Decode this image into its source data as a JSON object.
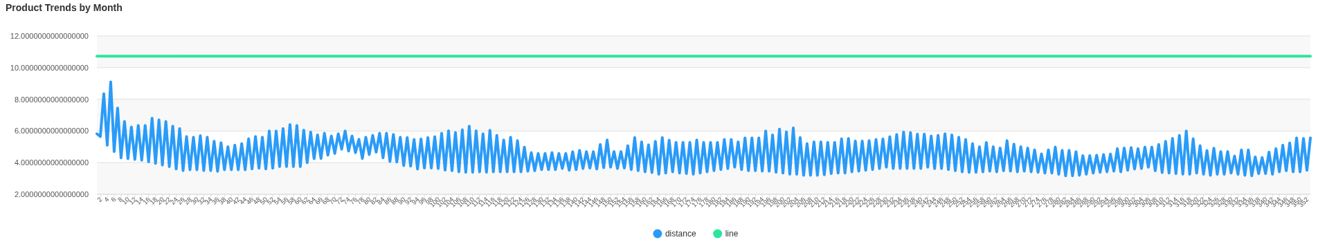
{
  "chart_data": {
    "type": "line",
    "title": "Product Trends by Month",
    "categories": [
      null,
      "2",
      null,
      "4",
      null,
      "6",
      null,
      "8",
      null,
      "10",
      null,
      "12",
      null,
      "14",
      null,
      "16",
      null,
      "18",
      null,
      "20",
      null,
      "22",
      null,
      "24",
      null,
      "26",
      null,
      "28",
      null,
      "30",
      null,
      "32",
      null,
      "34",
      null,
      "36",
      null,
      "38",
      null,
      "40",
      null,
      "42",
      null,
      "44",
      null,
      "46",
      null,
      "48",
      null,
      "50",
      null,
      "52",
      null,
      "54",
      null,
      "56",
      null,
      "58",
      null,
      "60",
      null,
      "62",
      null,
      "64",
      null,
      "66",
      null,
      "68",
      null,
      "70",
      null,
      "72",
      null,
      "74",
      null,
      "76",
      null,
      "78",
      null,
      "80",
      null,
      "82",
      null,
      "84",
      null,
      "86",
      null,
      "88",
      null,
      "90",
      null,
      "92",
      null,
      "94",
      null,
      "96",
      null,
      "98",
      null,
      "100",
      null,
      "102",
      null,
      "104",
      null,
      "106",
      null,
      "108",
      null,
      "110",
      null,
      "112",
      null,
      "114",
      null,
      "116",
      null,
      "118",
      null,
      "120",
      null,
      "122",
      null,
      "124",
      null,
      "126",
      null,
      "128",
      null,
      "130",
      null,
      "132",
      null,
      "134",
      null,
      "136",
      null,
      "138",
      null,
      "140",
      null,
      "142",
      null,
      "144",
      null,
      "146",
      null,
      "148",
      null,
      "150",
      null,
      "152",
      null,
      "154",
      null,
      "156",
      null,
      "158",
      null,
      "160",
      null,
      "162",
      null,
      "164",
      null,
      "166",
      null,
      "168",
      null,
      "170",
      null,
      "172",
      null,
      "174",
      null,
      "176",
      null,
      "178",
      null,
      "180",
      null,
      "182",
      null,
      "184",
      null,
      "186",
      null,
      "188",
      null,
      "190",
      null,
      "192",
      null,
      "194",
      null,
      "196",
      null,
      "198",
      null,
      "200",
      null,
      "202",
      null,
      "204",
      null,
      "206",
      null,
      "208",
      null,
      "210",
      null,
      "212",
      null,
      "214",
      null,
      "216",
      null,
      "218",
      null,
      "220",
      null,
      "222",
      null,
      "224",
      null,
      "226",
      null,
      "228",
      null,
      "230",
      null,
      "232",
      null,
      "234",
      null,
      "236",
      null,
      "238",
      null,
      "240",
      null,
      "242",
      null,
      "244",
      null,
      "246",
      null,
      "248",
      null,
      "250",
      null,
      "252",
      null,
      "254",
      null,
      "256",
      null,
      "258",
      null,
      "260",
      null,
      "262",
      null,
      "264",
      null,
      "266",
      null,
      "268",
      null,
      "270",
      null,
      "272",
      null,
      "274",
      null,
      "276",
      null,
      "278",
      null,
      "280",
      null,
      "282",
      null,
      "284",
      null,
      "286",
      null,
      "288",
      null,
      "290",
      null,
      "292",
      null,
      "294",
      null,
      "296",
      null,
      "298",
      null,
      "300",
      null,
      "302",
      null,
      "304",
      null,
      "306",
      null,
      "308",
      null,
      "310",
      null,
      "312",
      null,
      "314",
      null,
      "316",
      null,
      "318",
      null,
      "320",
      null,
      "322",
      null,
      "324",
      null,
      "326",
      null,
      "328",
      null,
      "330",
      null,
      "332",
      null,
      "334",
      null,
      "336",
      null,
      "338",
      null,
      "340",
      null,
      "342",
      null,
      "344",
      null,
      "346",
      null,
      "348",
      null,
      "350",
      null,
      "352",
      null
    ],
    "series": [
      {
        "name": "distance",
        "color": "#2a9bf8",
        "values": [
          5.82,
          5.65,
          8.35,
          5.1,
          9.1,
          4.7,
          7.45,
          4.3,
          6.6,
          4.25,
          6.25,
          4.2,
          6.35,
          4.15,
          6.35,
          4.05,
          6.8,
          3.95,
          6.7,
          3.85,
          6.6,
          3.75,
          6.3,
          3.6,
          6.15,
          3.5,
          5.65,
          3.55,
          5.6,
          3.55,
          5.7,
          3.5,
          5.6,
          3.5,
          5.35,
          3.45,
          5.25,
          3.55,
          5.0,
          3.55,
          5.1,
          3.55,
          5.2,
          3.55,
          5.5,
          3.6,
          5.65,
          3.65,
          5.6,
          3.6,
          6.0,
          3.65,
          6.0,
          3.75,
          6.15,
          3.75,
          6.4,
          3.75,
          6.35,
          3.75,
          6.05,
          4.0,
          5.93,
          4.25,
          5.75,
          4.26,
          5.85,
          4.47,
          5.68,
          4.58,
          5.82,
          4.85,
          6.0,
          4.73,
          5.68,
          4.63,
          5.47,
          4.26,
          5.6,
          4.51,
          5.72,
          4.66,
          5.85,
          4.3,
          5.85,
          4.07,
          5.78,
          4.04,
          5.6,
          3.81,
          5.58,
          3.78,
          5.46,
          3.59,
          5.49,
          3.66,
          5.58,
          3.66,
          5.64,
          3.63,
          5.85,
          3.53,
          6.01,
          3.49,
          5.9,
          3.42,
          6.07,
          3.39,
          6.3,
          3.39,
          6.01,
          3.42,
          5.82,
          3.39,
          6.04,
          3.42,
          5.72,
          3.42,
          5.43,
          3.42,
          5.6,
          3.42,
          5.39,
          3.42,
          4.98,
          3.46,
          4.63,
          3.49,
          4.58,
          3.56,
          4.58,
          3.56,
          4.63,
          3.56,
          4.58,
          3.63,
          4.58,
          3.52,
          4.69,
          3.56,
          4.77,
          3.63,
          4.69,
          3.66,
          4.69,
          3.6,
          5.14,
          3.68,
          5.43,
          3.71,
          4.7,
          3.63,
          4.7,
          3.66,
          5.07,
          3.56,
          5.58,
          3.49,
          5.31,
          3.42,
          5.12,
          3.37,
          5.34,
          3.27,
          5.58,
          3.34,
          5.42,
          3.42,
          5.28,
          3.34,
          5.28,
          3.31,
          5.28,
          3.27,
          5.43,
          3.34,
          5.28,
          3.42,
          5.28,
          3.49,
          5.28,
          3.56,
          5.46,
          3.63,
          5.46,
          3.71,
          5.31,
          3.56,
          5.56,
          3.49,
          5.56,
          3.49,
          5.56,
          3.46,
          6.0,
          3.46,
          5.75,
          3.39,
          6.12,
          3.34,
          5.94,
          3.27,
          6.19,
          3.27,
          5.58,
          3.2,
          5.2,
          3.2,
          5.31,
          3.2,
          5.31,
          3.23,
          5.28,
          3.31,
          5.28,
          3.34,
          5.5,
          3.34,
          5.53,
          3.42,
          5.36,
          3.46,
          5.36,
          3.52,
          5.39,
          3.56,
          5.46,
          3.63,
          5.49,
          3.71,
          5.64,
          3.63,
          5.78,
          3.63,
          5.93,
          3.63,
          5.9,
          3.63,
          5.8,
          3.63,
          5.8,
          3.71,
          5.68,
          3.63,
          5.72,
          3.63,
          5.82,
          3.56,
          5.75,
          3.49,
          5.6,
          3.42,
          5.46,
          3.39,
          5.2,
          3.39,
          5.0,
          3.42,
          5.27,
          3.46,
          5.0,
          3.42,
          4.92,
          3.49,
          5.39,
          3.46,
          5.17,
          3.42,
          5.0,
          3.46,
          4.92,
          3.42,
          4.8,
          3.39,
          4.55,
          3.34,
          4.8,
          3.34,
          4.98,
          3.27,
          4.77,
          3.17,
          4.77,
          3.17,
          4.69,
          3.2,
          4.44,
          3.27,
          4.44,
          3.34,
          4.47,
          3.39,
          4.51,
          3.42,
          4.54,
          3.46,
          4.88,
          3.42,
          4.92,
          3.52,
          4.95,
          3.6,
          4.88,
          3.63,
          4.98,
          3.71,
          4.98,
          3.49,
          5.14,
          3.37,
          5.34,
          3.34,
          5.53,
          3.31,
          5.72,
          3.27,
          6.0,
          3.27,
          5.5,
          3.34,
          5.07,
          3.27,
          4.76,
          3.2,
          4.91,
          3.27,
          4.7,
          3.27,
          4.7,
          3.34,
          4.41,
          3.27,
          4.8,
          3.2,
          4.8,
          3.17,
          4.36,
          3.31,
          4.32,
          3.31,
          4.66,
          3.27,
          4.88,
          3.42,
          5.1,
          3.49,
          5.24,
          3.42,
          5.56,
          3.42,
          5.53,
          3.52,
          5.56
        ]
      },
      {
        "name": "line",
        "color": "#2ee59d",
        "values": [
          10.72,
          10.72,
          10.72,
          10.72,
          10.72,
          10.72,
          10.72,
          10.72,
          10.72,
          10.72,
          10.72,
          10.72,
          10.72,
          10.72,
          10.72,
          10.72,
          10.72,
          10.72,
          10.72,
          10.72,
          10.72,
          10.72,
          10.72,
          10.72,
          10.72,
          10.72,
          10.72,
          10.72,
          10.72,
          10.72,
          10.72,
          10.72,
          10.72,
          10.72,
          10.72,
          10.72,
          10.72,
          10.72,
          10.72,
          10.72,
          10.72,
          10.72,
          10.72,
          10.72,
          10.72,
          10.72,
          10.72,
          10.72,
          10.72,
          10.72,
          10.72,
          10.72,
          10.72,
          10.72,
          10.72,
          10.72,
          10.72,
          10.72,
          10.72,
          10.72,
          10.72,
          10.72,
          10.72,
          10.72,
          10.72,
          10.72,
          10.72,
          10.72,
          10.72,
          10.72,
          10.72,
          10.72,
          10.72,
          10.72,
          10.72,
          10.72,
          10.72,
          10.72,
          10.72,
          10.72,
          10.72,
          10.72,
          10.72,
          10.72,
          10.72,
          10.72,
          10.72,
          10.72,
          10.72,
          10.72,
          10.72,
          10.72,
          10.72,
          10.72,
          10.72,
          10.72,
          10.72,
          10.72,
          10.72,
          10.72,
          10.72,
          10.72,
          10.72,
          10.72,
          10.72,
          10.72,
          10.72,
          10.72,
          10.72,
          10.72,
          10.72,
          10.72,
          10.72,
          10.72,
          10.72,
          10.72,
          10.72,
          10.72,
          10.72,
          10.72,
          10.72,
          10.72,
          10.72,
          10.72,
          10.72,
          10.72,
          10.72,
          10.72,
          10.72,
          10.72,
          10.72,
          10.72,
          10.72,
          10.72,
          10.72,
          10.72,
          10.72,
          10.72,
          10.72,
          10.72,
          10.72,
          10.72,
          10.72,
          10.72,
          10.72,
          10.72,
          10.72,
          10.72,
          10.72,
          10.72,
          10.72,
          10.72,
          10.72,
          10.72,
          10.72,
          10.72,
          10.72,
          10.72,
          10.72,
          10.72,
          10.72,
          10.72,
          10.72,
          10.72,
          10.72,
          10.72,
          10.72,
          10.72,
          10.72,
          10.72,
          10.72,
          10.72,
          10.72,
          10.72,
          10.72,
          10.72,
          10.72,
          10.72,
          10.72,
          10.72,
          10.72,
          10.72,
          10.72,
          10.72,
          10.72,
          10.72,
          10.72,
          10.72,
          10.72,
          10.72,
          10.72,
          10.72,
          10.72,
          10.72,
          10.72,
          10.72,
          10.72,
          10.72,
          10.72,
          10.72,
          10.72,
          10.72,
          10.72,
          10.72,
          10.72,
          10.72,
          10.72,
          10.72,
          10.72,
          10.72,
          10.72,
          10.72,
          10.72,
          10.72,
          10.72,
          10.72,
          10.72,
          10.72,
          10.72,
          10.72,
          10.72,
          10.72,
          10.72,
          10.72,
          10.72,
          10.72,
          10.72,
          10.72,
          10.72,
          10.72,
          10.72,
          10.72,
          10.72,
          10.72,
          10.72,
          10.72,
          10.72,
          10.72,
          10.72,
          10.72,
          10.72,
          10.72,
          10.72,
          10.72,
          10.72,
          10.72,
          10.72,
          10.72,
          10.72,
          10.72,
          10.72,
          10.72,
          10.72,
          10.72,
          10.72,
          10.72,
          10.72,
          10.72,
          10.72,
          10.72,
          10.72,
          10.72,
          10.72,
          10.72,
          10.72,
          10.72,
          10.72,
          10.72,
          10.72,
          10.72,
          10.72,
          10.72,
          10.72,
          10.72,
          10.72,
          10.72,
          10.72,
          10.72,
          10.72,
          10.72,
          10.72,
          10.72,
          10.72,
          10.72,
          10.72,
          10.72,
          10.72,
          10.72,
          10.72,
          10.72,
          10.72,
          10.72,
          10.72,
          10.72,
          10.72,
          10.72,
          10.72,
          10.72,
          10.72,
          10.72,
          10.72,
          10.72,
          10.72,
          10.72,
          10.72,
          10.72,
          10.72,
          10.72,
          10.72,
          10.72,
          10.72,
          10.72,
          10.72,
          10.72,
          10.72,
          10.72,
          10.72,
          10.72,
          10.72,
          10.72,
          10.72,
          10.72,
          10.72,
          10.72,
          10.72,
          10.72,
          10.72,
          10.72,
          10.72,
          10.72,
          10.72,
          10.72,
          10.72,
          10.72,
          10.72,
          10.72,
          10.72,
          10.72,
          10.72,
          10.72,
          10.72,
          10.72,
          10.72,
          10.72,
          10.72,
          10.72,
          10.72,
          10.72,
          10.72,
          10.72,
          10.72,
          10.72,
          10.72
        ]
      }
    ],
    "ylim": [
      2,
      12
    ],
    "yticks": [
      {
        "value": 2,
        "label": "2.0000000000000000"
      },
      {
        "value": 4,
        "label": "4.0000000000000000"
      },
      {
        "value": 6,
        "label": "6.0000000000000000"
      },
      {
        "value": 8,
        "label": "8.0000000000000000"
      },
      {
        "value": 10,
        "label": "10.0000000000000000"
      },
      {
        "value": 12,
        "label": "12.0000000000000000"
      }
    ],
    "grid": "y",
    "legend": "bottom"
  }
}
